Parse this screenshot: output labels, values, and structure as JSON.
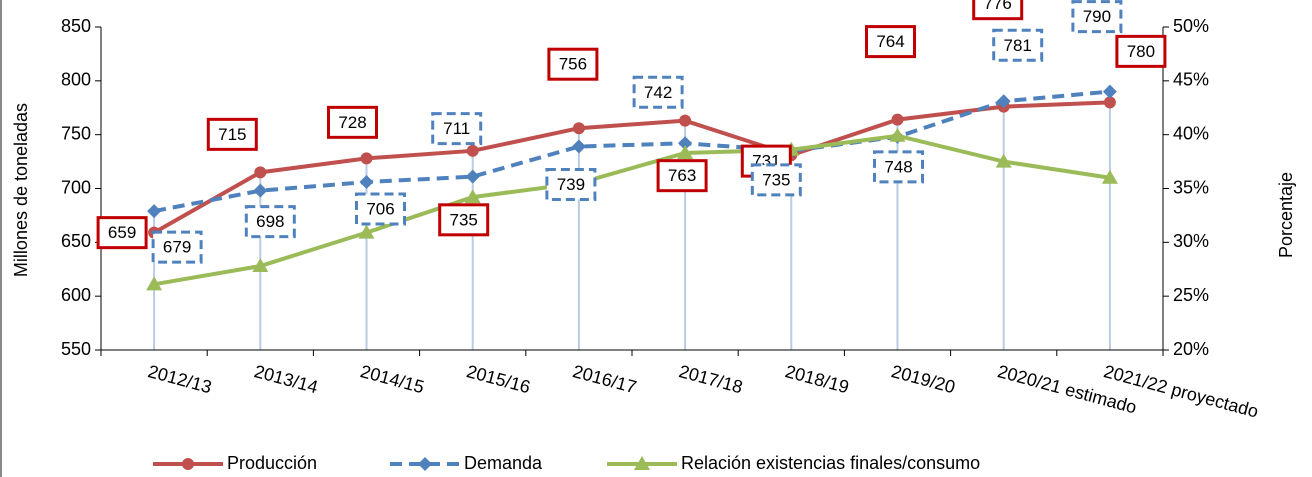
{
  "chart_data": {
    "type": "line",
    "categories": [
      "2012/13",
      "2013/14",
      "2014/15",
      "2015/16",
      "2016/17",
      "2017/18",
      "2018/19",
      "2019/20",
      "2020/21 estimado",
      "2021/22 proyectado"
    ],
    "ylabel": "Millones de toneladas",
    "y2label": "Porcentaje",
    "ylim": [
      550,
      850
    ],
    "yticks": [
      550,
      600,
      650,
      700,
      750,
      800,
      850
    ],
    "y2lim": [
      20,
      50
    ],
    "y2ticks": [
      {
        "value": 20,
        "label": "20%"
      },
      {
        "value": 25,
        "label": "25%"
      },
      {
        "value": 30,
        "label": "30%"
      },
      {
        "value": 35,
        "label": "35%"
      },
      {
        "value": 40,
        "label": "40%"
      },
      {
        "value": 45,
        "label": "45%"
      },
      {
        "value": 50,
        "label": "50%"
      }
    ],
    "legend": "bottom",
    "series": [
      {
        "name": "Producción",
        "color": "#c0504d",
        "marker": "circle",
        "values": [
          659,
          715,
          728,
          735,
          756,
          763,
          731,
          764,
          776,
          780
        ]
      },
      {
        "name": "Demanda",
        "color": "#4f81bd",
        "marker": "diamond",
        "dashed": true,
        "values": [
          679,
          698,
          706,
          711,
          739,
          742,
          735,
          748,
          781,
          790
        ]
      },
      {
        "name": "Relación existencias finales/consumo",
        "color": "#9bbb59",
        "marker": "triangle",
        "axis": "y2",
        "values": [
          26.1,
          27.8,
          30.9,
          34.2,
          35.5,
          38.3,
          38.6,
          39.9,
          37.5,
          36.0
        ]
      }
    ]
  }
}
